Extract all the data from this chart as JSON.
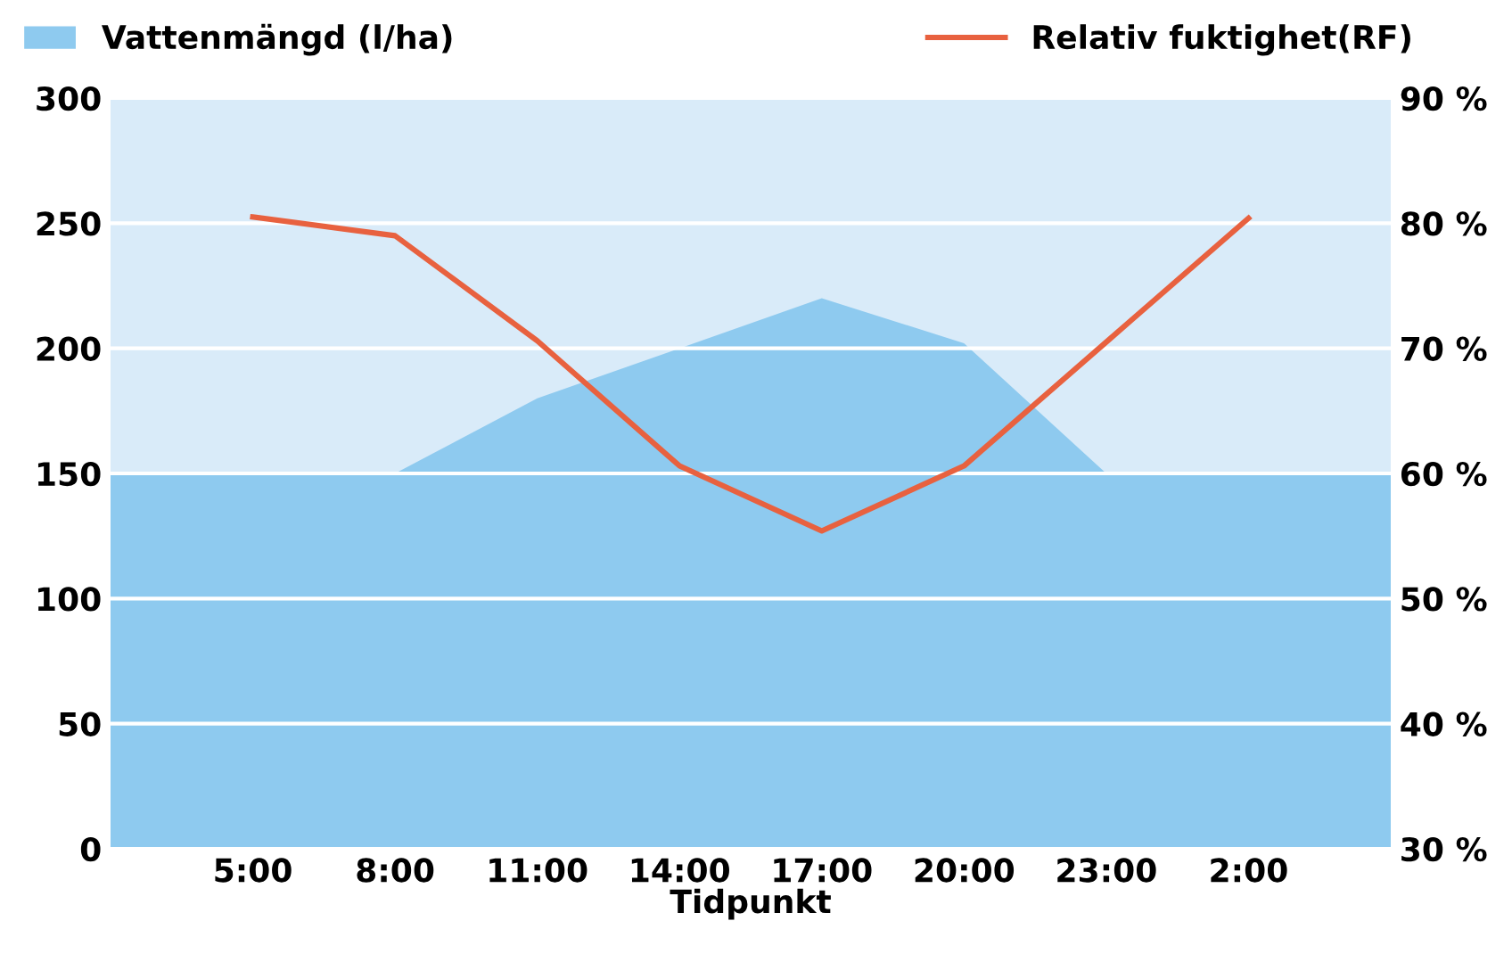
{
  "chart_data": {
    "type": "area",
    "xlabel": "Tidpunkt",
    "categories": [
      null,
      "5:00",
      "8:00",
      "11:00",
      "14:00",
      "17:00",
      "20:00",
      "23:00",
      "2:00",
      null
    ],
    "series": [
      {
        "name": "Vattenmängd (l/ha)",
        "color": "#8ecaef",
        "values": [
          150,
          150,
          150,
          180,
          200,
          220,
          202,
          150,
          150,
          150
        ]
      },
      {
        "name": "Relativ fuktighet(RF)",
        "type": "line",
        "axis": "y2",
        "color": "#e8613f",
        "values": [
          null,
          80.5,
          79,
          70.6,
          60.6,
          55.4,
          60.6,
          70.5,
          80.4,
          null
        ]
      }
    ],
    "ylim": [
      0,
      300
    ],
    "yticks": [
      0,
      50,
      100,
      150,
      200,
      250,
      300
    ],
    "y2lim": [
      30,
      90
    ],
    "y2ticks": [
      {
        "value": 30,
        "label": "30 %"
      },
      {
        "value": 40,
        "label": "40 %"
      },
      {
        "value": 50,
        "label": "50 %"
      },
      {
        "value": 60,
        "label": "60 %"
      },
      {
        "value": 70,
        "label": "70 %"
      },
      {
        "value": 80,
        "label": "80 %"
      },
      {
        "value": 90,
        "label": "90 %"
      }
    ],
    "bands": [
      {
        "axis": "y",
        "from": 150,
        "to": 300,
        "color": "#d9ebf9"
      }
    ],
    "grid": "y",
    "legend": "top"
  }
}
